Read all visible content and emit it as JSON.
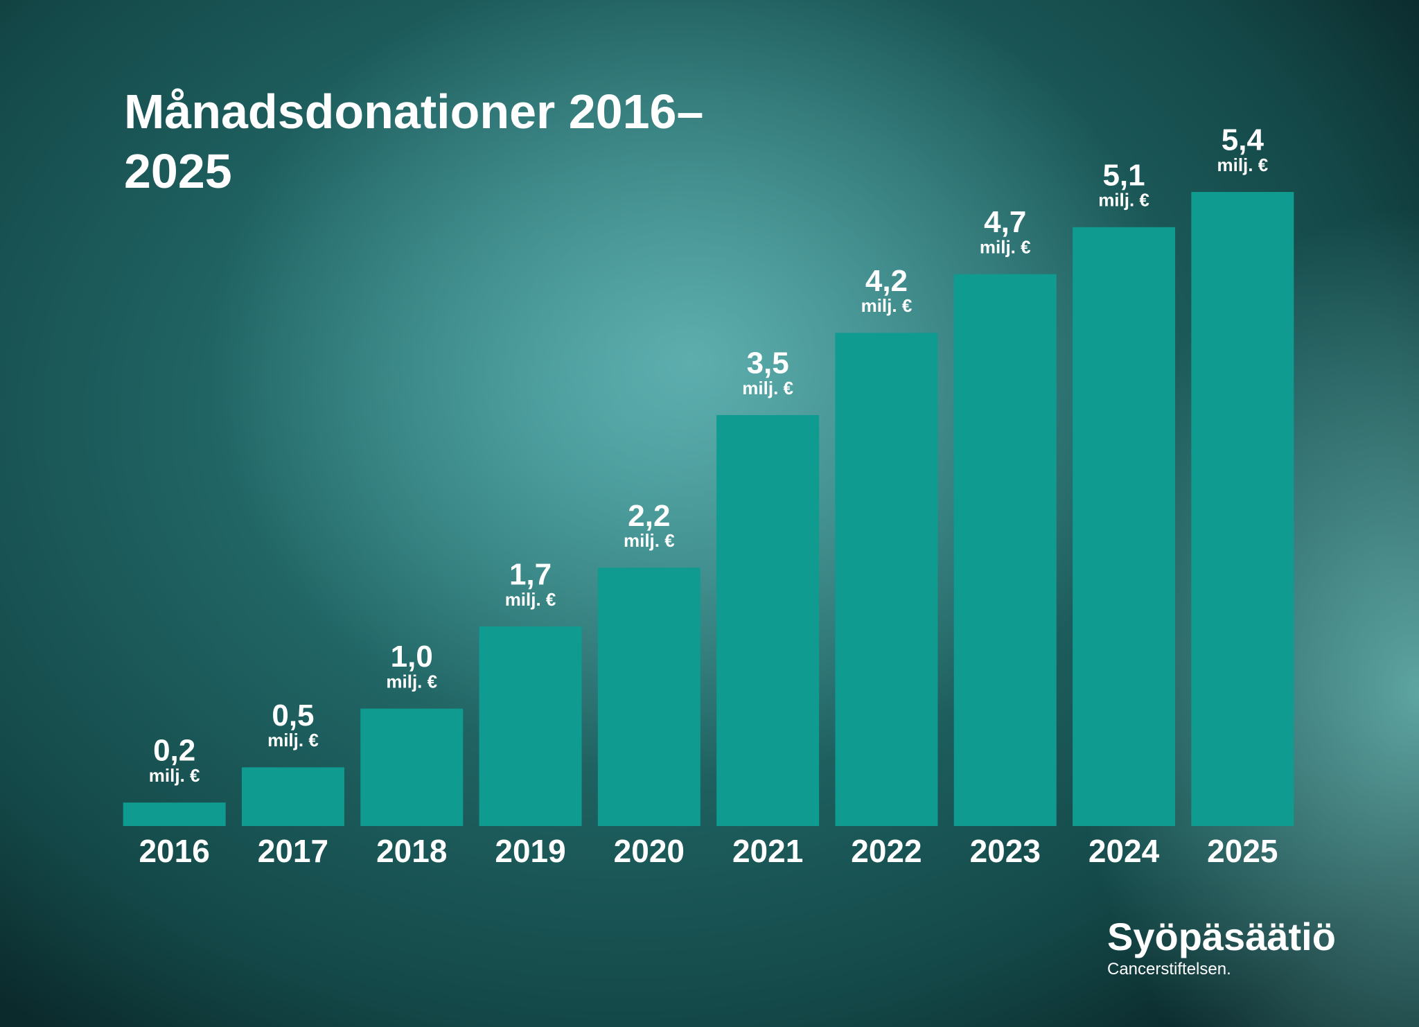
{
  "chart_data": {
    "type": "bar",
    "title": "Månadsdonationer 2016–2025",
    "categories": [
      "2016",
      "2017",
      "2018",
      "2019",
      "2020",
      "2021",
      "2022",
      "2023",
      "2024",
      "2025"
    ],
    "values": [
      0.2,
      0.5,
      1.0,
      1.7,
      2.2,
      3.5,
      4.2,
      4.7,
      5.1,
      5.4
    ],
    "value_labels": [
      "0,2",
      "0,5",
      "1,0",
      "1,7",
      "2,2",
      "3,5",
      "4,2",
      "4,7",
      "5,1",
      "5,4"
    ],
    "unit": "milj. €",
    "color": "#0f9b90",
    "grid": false
  },
  "brand": "Syöpäsäätiö",
  "brand_subtitle": "Cancerstiftelsen."
}
